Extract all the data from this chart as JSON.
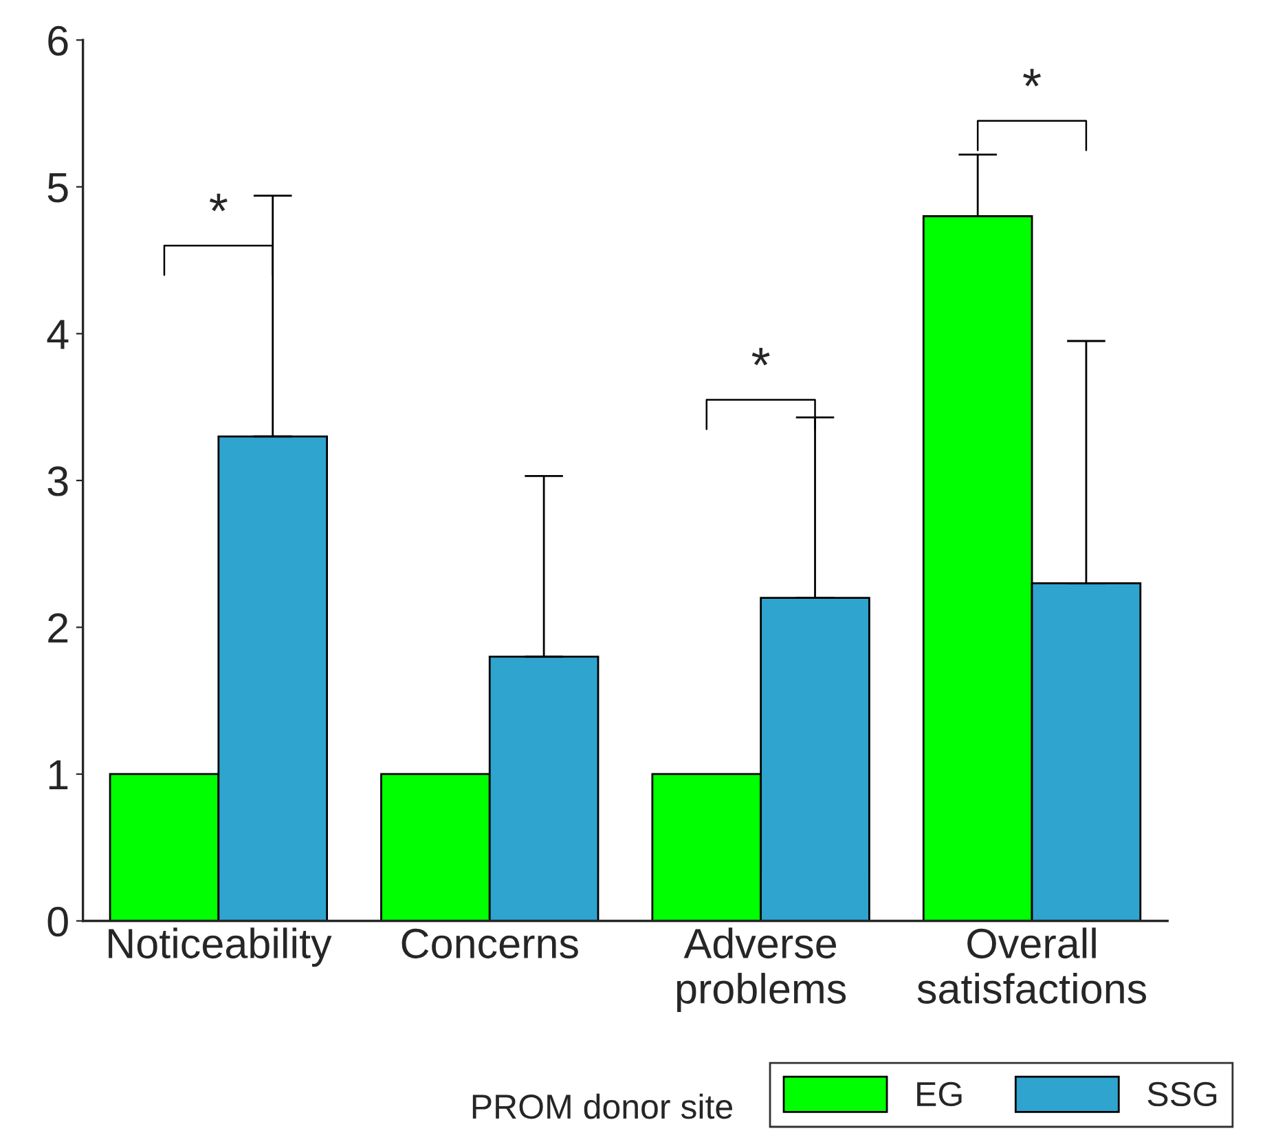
{
  "chart_data": {
    "type": "bar",
    "categories": [
      "Noticeability",
      "Concerns",
      "Adverse\nproblems",
      "Overall\nsatisfactions"
    ],
    "series": [
      {
        "name": "EG",
        "color": "#00ff00",
        "values": [
          1,
          1,
          1,
          4.8
        ],
        "errors": [
          null,
          null,
          null,
          [
            4.8,
            5.22
          ]
        ]
      },
      {
        "name": "SSG",
        "color": "#2ea4cf",
        "values": [
          3.3,
          1.8,
          2.2,
          2.3
        ],
        "errors": [
          [
            3.3,
            4.94
          ],
          [
            1.8,
            3.03
          ],
          [
            2.2,
            3.43
          ],
          [
            2.3,
            3.95
          ]
        ]
      }
    ],
    "ylim": [
      0,
      6
    ],
    "yticks": [
      0,
      1,
      2,
      3,
      4,
      5,
      6
    ],
    "grid": false,
    "legend": "bottom",
    "legend_title": "PROM donor site",
    "annotations": [
      "*",
      "*",
      "*"
    ]
  }
}
